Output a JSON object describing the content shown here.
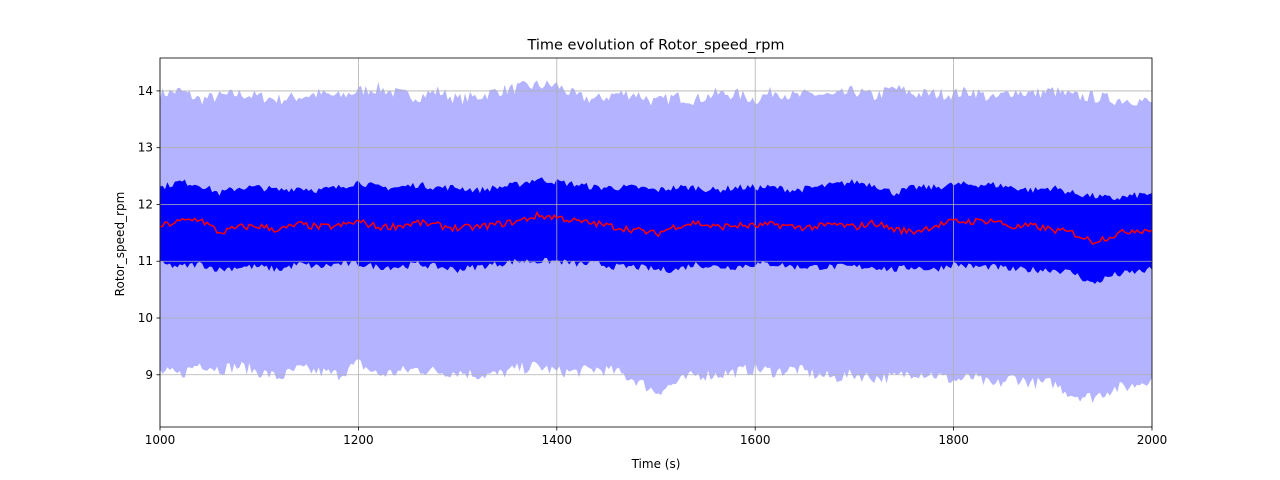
{
  "chart_data": {
    "type": "area",
    "title": "Time evolution of Rotor_speed_rpm",
    "xlabel": "Time (s)",
    "ylabel": "Rotor_speed_rpm",
    "xlim": [
      1000,
      2000
    ],
    "ylim": [
      8.08,
      14.58
    ],
    "xticks": [
      1000,
      1200,
      1400,
      1600,
      1800,
      2000
    ],
    "xtick_labels": [
      "1000",
      "1200",
      "1400",
      "1600",
      "1800",
      "2000"
    ],
    "yticks": [
      9,
      10,
      11,
      12,
      13,
      14
    ],
    "ytick_labels": [
      "9",
      "10",
      "11",
      "12",
      "13",
      "14"
    ],
    "grid": true,
    "legend": "none",
    "colors": {
      "outer_band": "#b3b3ff",
      "inner_band": "#0000ff",
      "mean_line": "#ff0000",
      "grid": "#b0b0b0"
    },
    "x": [
      1000,
      1020,
      1040,
      1060,
      1080,
      1100,
      1120,
      1140,
      1160,
      1180,
      1200,
      1220,
      1240,
      1260,
      1280,
      1300,
      1320,
      1340,
      1360,
      1380,
      1400,
      1420,
      1440,
      1460,
      1480,
      1500,
      1520,
      1540,
      1560,
      1580,
      1600,
      1620,
      1640,
      1660,
      1680,
      1700,
      1720,
      1740,
      1760,
      1780,
      1800,
      1820,
      1840,
      1860,
      1880,
      1900,
      1920,
      1940,
      1960,
      1980,
      2000
    ],
    "series": [
      {
        "role": "outer_upper",
        "values": [
          13.95,
          14.0,
          13.85,
          13.9,
          13.95,
          13.9,
          13.85,
          13.9,
          13.95,
          13.9,
          14.0,
          14.05,
          13.95,
          13.9,
          14.0,
          13.85,
          13.9,
          14.0,
          14.05,
          14.1,
          14.1,
          13.9,
          13.85,
          13.95,
          13.95,
          13.8,
          13.9,
          13.85,
          13.95,
          13.95,
          13.85,
          14.0,
          13.9,
          13.95,
          13.9,
          14.0,
          13.9,
          14.05,
          13.95,
          13.95,
          13.95,
          14.0,
          13.85,
          14.0,
          13.95,
          14.0,
          13.9,
          13.9,
          13.85,
          13.85,
          13.8
        ]
      },
      {
        "role": "outer_lower",
        "values": [
          9.05,
          9.0,
          9.2,
          9.1,
          9.15,
          9.05,
          8.95,
          9.1,
          9.05,
          9.0,
          9.2,
          9.0,
          9.05,
          9.1,
          9.05,
          9.05,
          9.0,
          9.0,
          9.1,
          9.15,
          9.05,
          9.05,
          9.1,
          9.05,
          8.9,
          8.7,
          8.85,
          9.0,
          9.0,
          9.05,
          9.1,
          9.05,
          9.1,
          9.0,
          8.95,
          9.0,
          8.95,
          8.95,
          9.05,
          9.0,
          8.9,
          8.95,
          8.8,
          8.95,
          8.85,
          8.85,
          8.65,
          8.6,
          8.75,
          8.8,
          8.95
        ]
      },
      {
        "role": "inner_upper",
        "values": [
          12.3,
          12.4,
          12.35,
          12.2,
          12.3,
          12.3,
          12.25,
          12.3,
          12.25,
          12.3,
          12.4,
          12.3,
          12.3,
          12.35,
          12.3,
          12.3,
          12.25,
          12.3,
          12.35,
          12.45,
          12.4,
          12.35,
          12.3,
          12.3,
          12.3,
          12.25,
          12.3,
          12.3,
          12.25,
          12.3,
          12.3,
          12.3,
          12.25,
          12.3,
          12.35,
          12.4,
          12.35,
          12.2,
          12.3,
          12.3,
          12.35,
          12.35,
          12.35,
          12.3,
          12.25,
          12.3,
          12.2,
          12.15,
          12.1,
          12.15,
          12.2
        ]
      },
      {
        "role": "inner_lower",
        "values": [
          10.95,
          10.9,
          10.95,
          10.85,
          10.9,
          10.9,
          10.85,
          10.95,
          10.9,
          10.95,
          10.95,
          10.9,
          10.9,
          10.95,
          10.9,
          10.85,
          10.9,
          10.95,
          11.0,
          11.0,
          11.0,
          10.95,
          10.95,
          10.9,
          10.9,
          10.85,
          10.85,
          10.95,
          10.9,
          10.9,
          10.95,
          10.95,
          10.9,
          10.9,
          10.9,
          10.9,
          10.9,
          10.85,
          10.9,
          10.85,
          10.95,
          10.9,
          10.9,
          10.85,
          10.85,
          10.85,
          10.8,
          10.6,
          10.75,
          10.8,
          10.85
        ]
      },
      {
        "role": "mean",
        "values": [
          11.62,
          11.7,
          11.75,
          11.5,
          11.6,
          11.62,
          11.55,
          11.65,
          11.6,
          11.62,
          11.7,
          11.6,
          11.62,
          11.68,
          11.63,
          11.58,
          11.6,
          11.65,
          11.7,
          11.8,
          11.78,
          11.7,
          11.66,
          11.6,
          11.55,
          11.48,
          11.62,
          11.68,
          11.6,
          11.63,
          11.62,
          11.65,
          11.6,
          11.6,
          11.65,
          11.6,
          11.68,
          11.56,
          11.52,
          11.62,
          11.7,
          11.7,
          11.72,
          11.6,
          11.62,
          11.55,
          11.5,
          11.35,
          11.45,
          11.55,
          11.55
        ]
      }
    ]
  }
}
